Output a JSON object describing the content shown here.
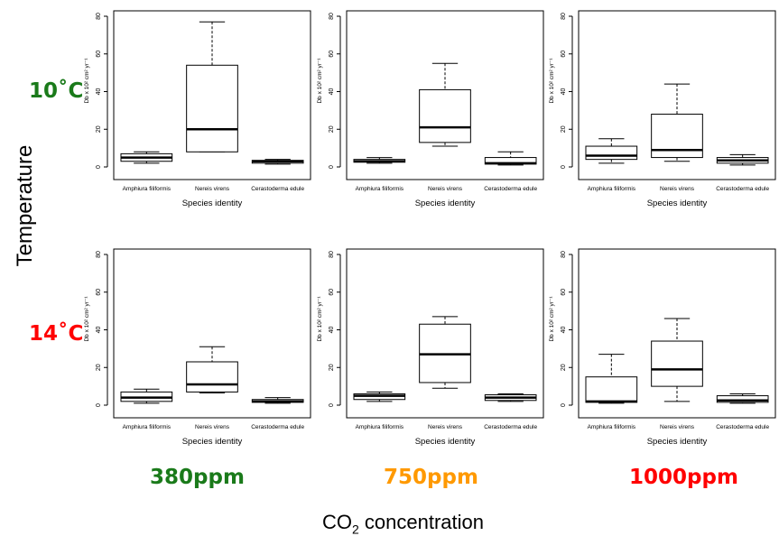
{
  "figure": {
    "y_title": "Temperature",
    "x_title_main": "CO",
    "x_title_sub": "2",
    "x_title_rest": " concentration"
  },
  "rows": [
    {
      "label": "10˚C",
      "color": "#1a7a1a"
    },
    {
      "label": "14˚C",
      "color": "#ff0000"
    }
  ],
  "columns": [
    {
      "label": "380ppm",
      "color": "#1a7a1a"
    },
    {
      "label": "750ppm",
      "color": "#ff9900"
    },
    {
      "label": "1000ppm",
      "color": "#ff0000"
    }
  ],
  "chart_data": [
    {
      "type": "box",
      "row": 0,
      "col": 0,
      "categories": [
        "Amphiura filiformis",
        "Nereis virens",
        "Cerastoderma edule"
      ],
      "xlabel": "Species identity",
      "ylabel": "Db x 10² cm² yr⁻¹",
      "ylim": [
        0,
        80
      ],
      "yticks": [
        0,
        20,
        40,
        60,
        80
      ],
      "boxes": [
        {
          "min": 2,
          "q1": 3,
          "median": 5,
          "q3": 7,
          "max": 8
        },
        {
          "min": 8,
          "q1": 8,
          "median": 20,
          "q3": 54,
          "max": 77
        },
        {
          "min": 1.5,
          "q1": 2,
          "median": 3,
          "q3": 3.5,
          "max": 4
        }
      ]
    },
    {
      "type": "box",
      "row": 0,
      "col": 1,
      "categories": [
        "Amphiura filiformis",
        "Nereis virens",
        "Cerastoderma edule"
      ],
      "xlabel": "Species identity",
      "ylabel": "Db x 10² cm² yr⁻¹",
      "ylim": [
        0,
        80
      ],
      "yticks": [
        0,
        20,
        40,
        60,
        80
      ],
      "boxes": [
        {
          "min": 2,
          "q1": 2.5,
          "median": 3,
          "q3": 4,
          "max": 5
        },
        {
          "min": 11,
          "q1": 13,
          "median": 21,
          "q3": 41,
          "max": 55
        },
        {
          "min": 1,
          "q1": 1.5,
          "median": 2,
          "q3": 5,
          "max": 8
        }
      ]
    },
    {
      "type": "box",
      "row": 0,
      "col": 2,
      "categories": [
        "Amphiura filiformis",
        "Nereis virens",
        "Cerastoderma edule"
      ],
      "xlabel": "Species identity",
      "ylabel": "Db x 10² cm² yr⁻¹",
      "ylim": [
        0,
        80
      ],
      "yticks": [
        0,
        20,
        40,
        60,
        80
      ],
      "boxes": [
        {
          "min": 2,
          "q1": 4,
          "median": 6,
          "q3": 11,
          "max": 15
        },
        {
          "min": 3,
          "q1": 5,
          "median": 9,
          "q3": 28,
          "max": 44
        },
        {
          "min": 1,
          "q1": 2,
          "median": 3.5,
          "q3": 5,
          "max": 6.5
        }
      ]
    },
    {
      "type": "box",
      "row": 1,
      "col": 0,
      "categories": [
        "Amphiura filiformis",
        "Nereis virens",
        "Cerastoderma edule"
      ],
      "xlabel": "Species identity",
      "ylabel": "Db x 10² cm² yr⁻¹",
      "ylim": [
        0,
        80
      ],
      "yticks": [
        0,
        20,
        40,
        60,
        80
      ],
      "boxes": [
        {
          "min": 1,
          "q1": 2,
          "median": 4,
          "q3": 7,
          "max": 8.5
        },
        {
          "min": 6.5,
          "q1": 7,
          "median": 11,
          "q3": 23,
          "max": 31
        },
        {
          "min": 1,
          "q1": 1.5,
          "median": 2,
          "q3": 3,
          "max": 4
        }
      ]
    },
    {
      "type": "box",
      "row": 1,
      "col": 1,
      "categories": [
        "Amphiura filiformis",
        "Nereis virens",
        "Cerastoderma edule"
      ],
      "xlabel": "Species identity",
      "ylabel": "Db x 10² cm² yr⁻¹",
      "ylim": [
        0,
        80
      ],
      "yticks": [
        0,
        20,
        40,
        60,
        80
      ],
      "boxes": [
        {
          "min": 2,
          "q1": 3,
          "median": 5,
          "q3": 6,
          "max": 7
        },
        {
          "min": 9,
          "q1": 12,
          "median": 27,
          "q3": 43,
          "max": 47
        },
        {
          "min": 2,
          "q1": 2.5,
          "median": 4,
          "q3": 5.5,
          "max": 6
        }
      ]
    },
    {
      "type": "box",
      "row": 1,
      "col": 2,
      "categories": [
        "Amphiura filiformis",
        "Nereis virens",
        "Cerastoderma edule"
      ],
      "xlabel": "Species identity",
      "ylabel": "Db x 10² cm² yr⁻¹",
      "ylim": [
        0,
        80
      ],
      "yticks": [
        0,
        20,
        40,
        60,
        80
      ],
      "boxes": [
        {
          "min": 1,
          "q1": 1.5,
          "median": 2,
          "q3": 15,
          "max": 27
        },
        {
          "min": 2,
          "q1": 10,
          "median": 19,
          "q3": 34,
          "max": 46
        },
        {
          "min": 1,
          "q1": 1.5,
          "median": 2.5,
          "q3": 5,
          "max": 6
        }
      ]
    }
  ]
}
